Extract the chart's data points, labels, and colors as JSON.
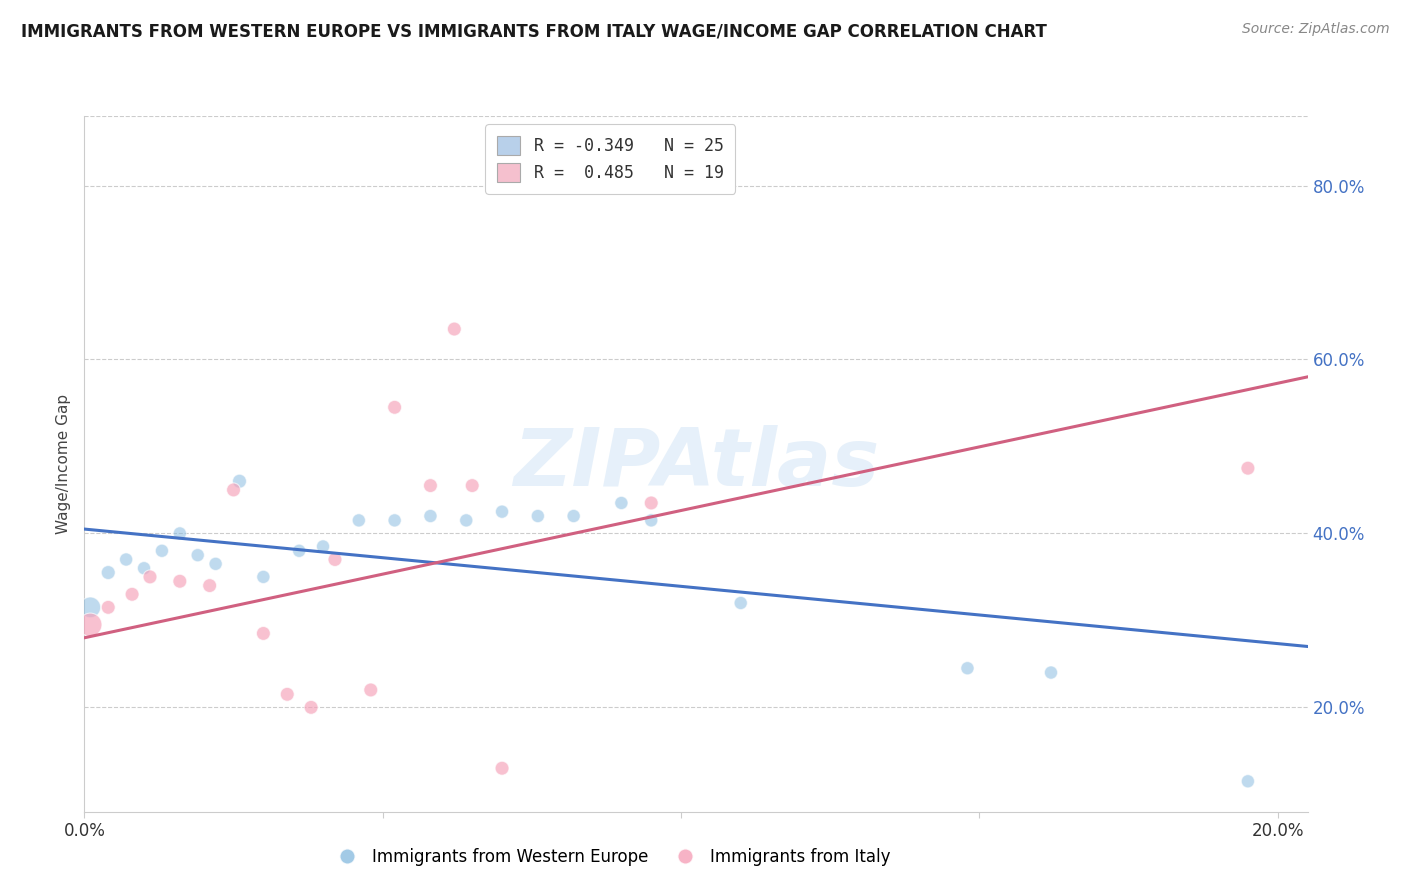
{
  "title": "IMMIGRANTS FROM WESTERN EUROPE VS IMMIGRANTS FROM ITALY WAGE/INCOME GAP CORRELATION CHART",
  "source": "Source: ZipAtlas.com",
  "ylabel": "Wage/Income Gap",
  "watermark": "ZIPAtlas",
  "xlim": [
    0.0,
    0.205
  ],
  "ylim": [
    0.08,
    0.88
  ],
  "ytick_vals": [
    0.2,
    0.4,
    0.6,
    0.8
  ],
  "ytick_labels": [
    "20.0%",
    "40.0%",
    "60.0%",
    "80.0%"
  ],
  "xticks": [
    0.0,
    0.05,
    0.1,
    0.15,
    0.2
  ],
  "legend_label1": "R = -0.349   N = 25",
  "legend_label2": "R =  0.485   N = 19",
  "legend_color1": "#b8d0ea",
  "legend_color2": "#f5c0ce",
  "series1_color": "#8bbde0",
  "series2_color": "#f5a0b8",
  "line1_color": "#4472c4",
  "line2_color": "#d06080",
  "blue_line_y": [
    0.405,
    0.27
  ],
  "pink_line_y": [
    0.28,
    0.58
  ],
  "blue_data": [
    [
      0.001,
      0.315
    ],
    [
      0.004,
      0.355
    ],
    [
      0.007,
      0.37
    ],
    [
      0.01,
      0.36
    ],
    [
      0.013,
      0.38
    ],
    [
      0.016,
      0.4
    ],
    [
      0.019,
      0.375
    ],
    [
      0.022,
      0.365
    ],
    [
      0.026,
      0.46
    ],
    [
      0.03,
      0.35
    ],
    [
      0.036,
      0.38
    ],
    [
      0.04,
      0.385
    ],
    [
      0.046,
      0.415
    ],
    [
      0.052,
      0.415
    ],
    [
      0.058,
      0.42
    ],
    [
      0.064,
      0.415
    ],
    [
      0.07,
      0.425
    ],
    [
      0.076,
      0.42
    ],
    [
      0.082,
      0.42
    ],
    [
      0.09,
      0.435
    ],
    [
      0.095,
      0.415
    ],
    [
      0.11,
      0.32
    ],
    [
      0.148,
      0.245
    ],
    [
      0.162,
      0.24
    ],
    [
      0.195,
      0.115
    ]
  ],
  "pink_data": [
    [
      0.001,
      0.295
    ],
    [
      0.004,
      0.315
    ],
    [
      0.008,
      0.33
    ],
    [
      0.011,
      0.35
    ],
    [
      0.016,
      0.345
    ],
    [
      0.021,
      0.34
    ],
    [
      0.025,
      0.45
    ],
    [
      0.03,
      0.285
    ],
    [
      0.034,
      0.215
    ],
    [
      0.038,
      0.2
    ],
    [
      0.042,
      0.37
    ],
    [
      0.048,
      0.22
    ],
    [
      0.052,
      0.545
    ],
    [
      0.058,
      0.455
    ],
    [
      0.062,
      0.635
    ],
    [
      0.065,
      0.455
    ],
    [
      0.07,
      0.13
    ],
    [
      0.095,
      0.435
    ],
    [
      0.195,
      0.475
    ]
  ],
  "blue_sizes": [
    220,
    100,
    90,
    90,
    90,
    90,
    90,
    90,
    100,
    90,
    90,
    90,
    90,
    90,
    90,
    90,
    90,
    90,
    90,
    90,
    90,
    90,
    90,
    90,
    90
  ],
  "pink_sizes": [
    280,
    100,
    100,
    100,
    100,
    100,
    100,
    100,
    100,
    100,
    100,
    100,
    100,
    100,
    100,
    100,
    100,
    100,
    100
  ]
}
